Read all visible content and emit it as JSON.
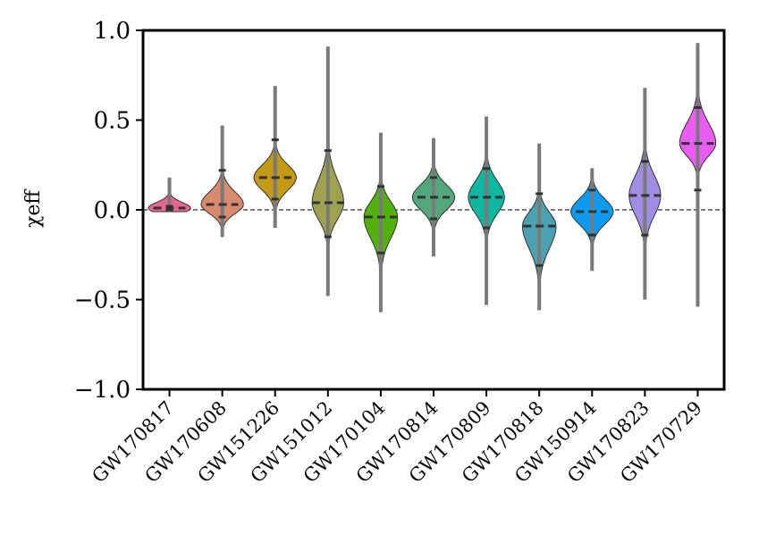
{
  "chart_data": {
    "type": "violin",
    "ylabel": "χeff",
    "ylim": [
      -1.0,
      1.0
    ],
    "yticks": [
      {
        "value": 1.0,
        "label": "1.0"
      },
      {
        "value": 0.5,
        "label": "0.5"
      },
      {
        "value": 0.0,
        "label": "0.0"
      },
      {
        "value": -0.5,
        "label": "−0.5"
      },
      {
        "value": -1.0,
        "label": "−1.0"
      }
    ],
    "reference_line": 0.0,
    "grid": false,
    "categories": [
      "GW170817",
      "GW170608",
      "GW151226",
      "GW151012",
      "GW170104",
      "GW170814",
      "GW170809",
      "GW170818",
      "GW150914",
      "GW170823",
      "GW170729"
    ],
    "events": [
      {
        "name": "GW170817",
        "color": "#e8668f",
        "median": 0.01,
        "q_low": 0.0,
        "q_high": 0.02,
        "min": -0.01,
        "max": 0.18,
        "bw": 0.03,
        "skew": 0.005
      },
      {
        "name": "GW170608",
        "color": "#d88a6c",
        "median": 0.03,
        "q_low": -0.04,
        "q_high": 0.22,
        "min": -0.15,
        "max": 0.47,
        "bw": 0.06,
        "skew": 0.02
      },
      {
        "name": "GW151226",
        "color": "#c39a14",
        "median": 0.18,
        "q_low": 0.06,
        "q_high": 0.39,
        "min": -0.1,
        "max": 0.69,
        "bw": 0.07,
        "skew": 0.0
      },
      {
        "name": "GW151012",
        "color": "#9ea24f",
        "median": 0.04,
        "q_low": -0.15,
        "q_high": 0.33,
        "min": -0.48,
        "max": 0.91,
        "bw": 0.11,
        "skew": 0.02
      },
      {
        "name": "GW170104",
        "color": "#53b10e",
        "median": -0.04,
        "q_low": -0.24,
        "q_high": 0.13,
        "min": -0.57,
        "max": 0.43,
        "bw": 0.1,
        "skew": -0.02
      },
      {
        "name": "GW170814",
        "color": "#53a77d",
        "median": 0.07,
        "q_low": -0.05,
        "q_high": 0.18,
        "min": -0.26,
        "max": 0.4,
        "bw": 0.07,
        "skew": 0.0
      },
      {
        "name": "GW170809",
        "color": "#0eb8a0",
        "median": 0.07,
        "q_low": -0.1,
        "q_high": 0.23,
        "min": -0.53,
        "max": 0.52,
        "bw": 0.09,
        "skew": 0.0
      },
      {
        "name": "GW170818",
        "color": "#4aa1b1",
        "median": -0.09,
        "q_low": -0.31,
        "q_high": 0.09,
        "min": -0.56,
        "max": 0.37,
        "bw": 0.1,
        "skew": -0.03
      },
      {
        "name": "GW150914",
        "color": "#0c9bf0",
        "median": -0.01,
        "q_low": -0.14,
        "q_high": 0.11,
        "min": -0.34,
        "max": 0.23,
        "bw": 0.07,
        "skew": 0.0
      },
      {
        "name": "GW170823",
        "color": "#a08ee6",
        "median": 0.08,
        "q_low": -0.14,
        "q_high": 0.27,
        "min": -0.5,
        "max": 0.68,
        "bw": 0.11,
        "skew": 0.0
      },
      {
        "name": "GW170729",
        "color": "#ea5cf2",
        "median": 0.37,
        "q_low": 0.11,
        "q_high": 0.57,
        "min": -0.54,
        "max": 0.93,
        "bw": 0.09,
        "skew": 0.03
      }
    ]
  }
}
